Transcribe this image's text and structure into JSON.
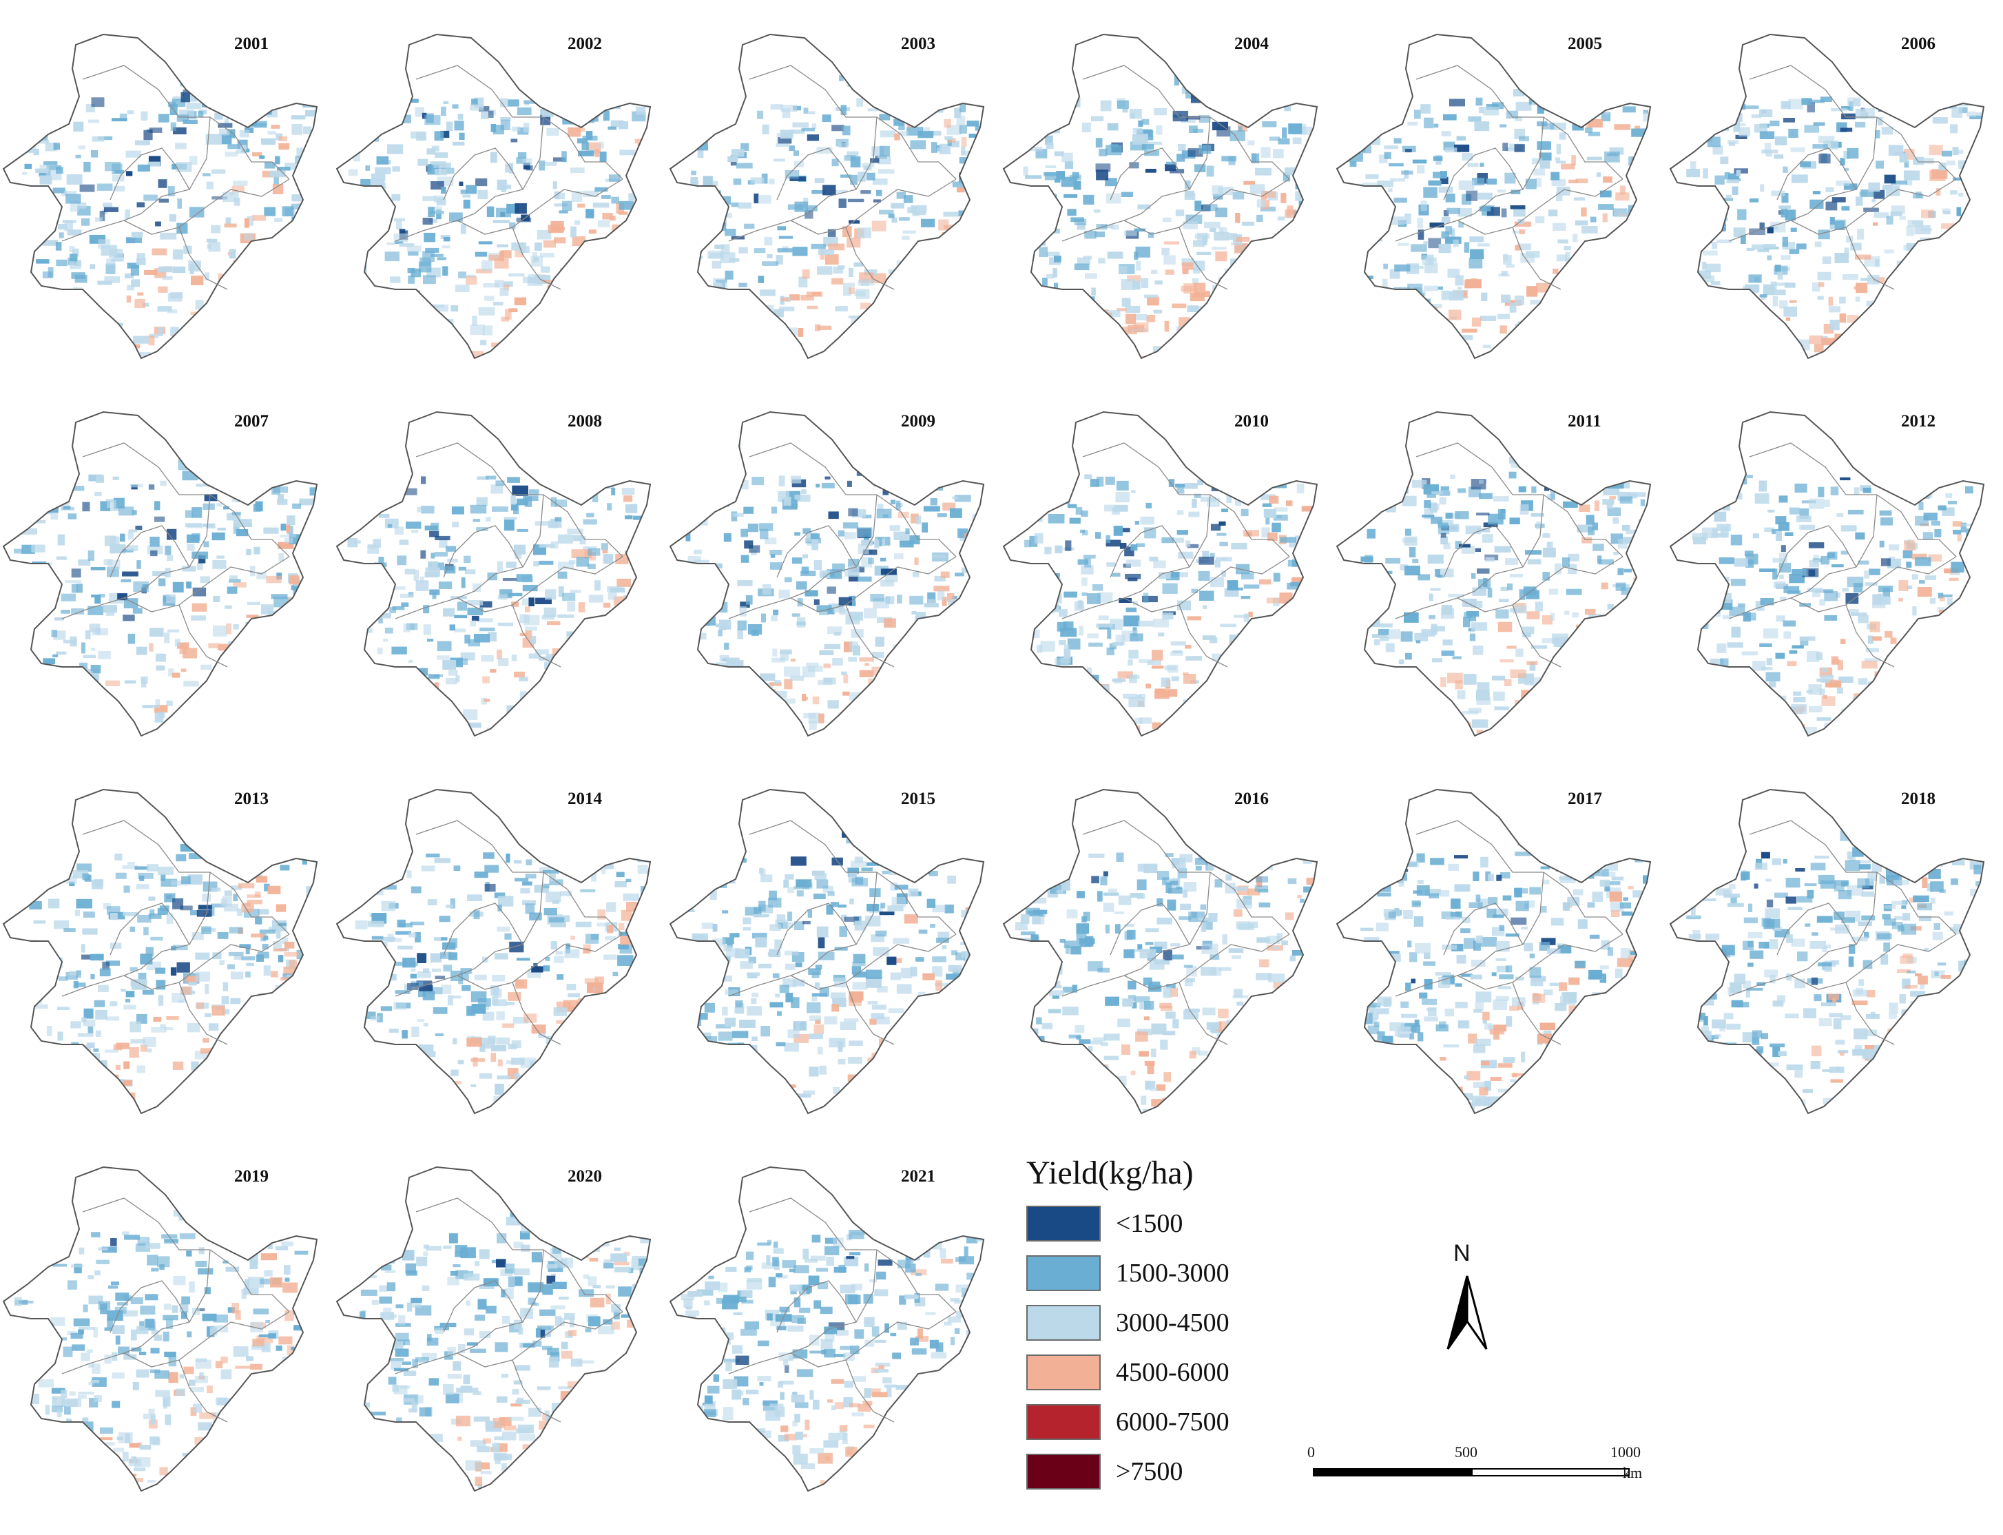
{
  "figure": {
    "years": [
      "2001",
      "2002",
      "2003",
      "2004",
      "2005",
      "2006",
      "2007",
      "2008",
      "2009",
      "2010",
      "2011",
      "2012",
      "2013",
      "2014",
      "2015",
      "2016",
      "2017",
      "2018",
      "2019",
      "2020",
      "2021"
    ],
    "layout_columns": 6
  },
  "legend": {
    "title": "Yield(kg/ha)",
    "classes": [
      {
        "label": "<1500",
        "color": "#1a4a86"
      },
      {
        "label": "1500-3000",
        "color": "#6aaed3"
      },
      {
        "label": "3000-4500",
        "color": "#bcd9ea"
      },
      {
        "label": "4500-6000",
        "color": "#f2b196"
      },
      {
        "label": "6000-7500",
        "color": "#b5242d"
      },
      {
        "label": ">7500",
        "color": "#6a0018"
      }
    ]
  },
  "north_arrow": {
    "letter": "N",
    "icon": "north-arrow-icon"
  },
  "scale_bar": {
    "ticks": [
      "0",
      "500",
      "1000"
    ],
    "unit": "km"
  }
}
